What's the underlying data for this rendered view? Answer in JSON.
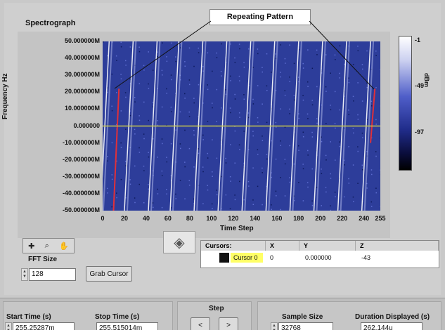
{
  "spectrograph": {
    "title": "Spectrograph",
    "annotation": "Repeating Pattern",
    "y_axis_title": "Frequency Hz",
    "x_axis_title": "Time Step",
    "y_ticks": [
      "50.000000M",
      "40.000000M",
      "30.000000M",
      "20.000000M",
      "10.000000M",
      "0.000000",
      "-10.000000M",
      "-20.000000M",
      "-30.000000M",
      "-40.000000M",
      "-50.000000M"
    ],
    "x_ticks": [
      "0",
      "20",
      "40",
      "60",
      "80",
      "100",
      "120",
      "140",
      "160",
      "180",
      "200",
      "220",
      "240",
      "255"
    ]
  },
  "colorbar": {
    "ticks": [
      "-1",
      "-49",
      "-97"
    ],
    "unit": "dBm"
  },
  "toolbar": {
    "icons": [
      "cursor-move-icon",
      "zoom-icon",
      "hand-pan-icon"
    ],
    "pan_icon": "diamond-pan-icon"
  },
  "fft": {
    "label": "FFT Size",
    "value": "128",
    "grab_cursor": "Grab Cursor"
  },
  "cursors": {
    "headers": [
      "Cursors:",
      "X",
      "Y",
      "Z"
    ],
    "row": {
      "name": "Cursor 0",
      "x": "0",
      "y": "0.000000",
      "z": "-43"
    }
  },
  "bottom": {
    "start_time_label": "Start Time (s)",
    "start_time_value": "255.25287m",
    "stop_time_label": "Stop Time (s)",
    "stop_time_value": "255.515014m",
    "step_label": "Step",
    "prev_label": "<",
    "next_label": ">",
    "sample_size_label": "Sample Size",
    "sample_size_value": "32768",
    "duration_label": "Duration Displayed (s)",
    "duration_value": "262.144u"
  },
  "colors": {
    "plot_bg": "#2d3d9a",
    "trace": "#ffffff",
    "cursor_line": "#c8c84a",
    "highlight": "#e0303a",
    "cursor_name_bg": "#ffff66"
  }
}
